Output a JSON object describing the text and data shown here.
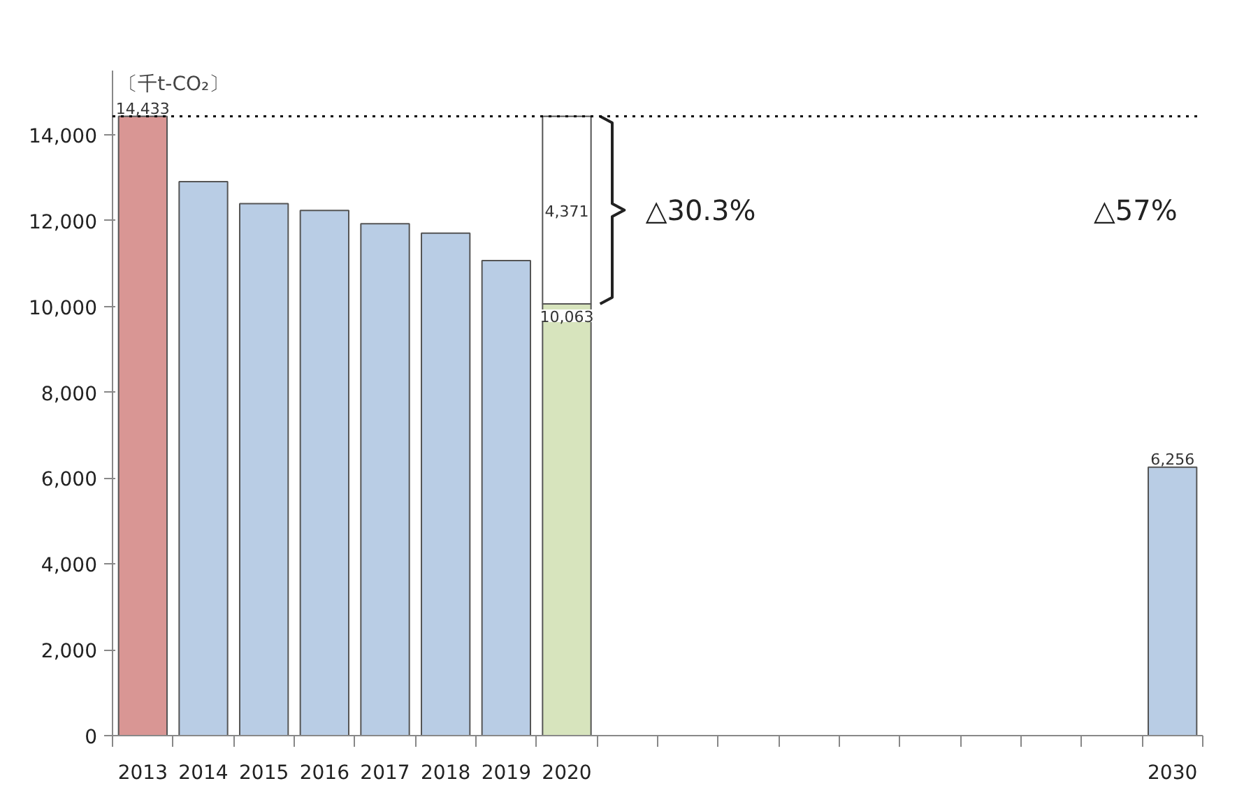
{
  "chart_data": {
    "type": "bar",
    "stacked": true,
    "ylabel": "〔千t-CO₂〕",
    "categories": [
      "2013",
      "2014",
      "2015",
      "2016",
      "2017",
      "2018",
      "2019",
      "2020",
      null,
      null,
      null,
      null,
      null,
      null,
      null,
      null,
      null,
      "2030"
    ],
    "series": [
      {
        "colors": [
          "#d99694",
          "#b9cde5",
          "#b9cde5",
          "#b9cde5",
          "#b9cde5",
          "#b9cde5",
          "#b9cde5",
          "#d7e4bd",
          null,
          null,
          null,
          null,
          null,
          null,
          null,
          null,
          null,
          "#b9cde5"
        ],
        "values": [
          14433,
          12910,
          12400,
          12240,
          11930,
          11710,
          11070,
          10063,
          null,
          null,
          null,
          null,
          null,
          null,
          null,
          null,
          null,
          6256
        ],
        "value_labels": [
          "14,433",
          null,
          null,
          null,
          null,
          null,
          null,
          "10,063",
          null,
          null,
          null,
          null,
          null,
          null,
          null,
          null,
          null,
          "6,256"
        ]
      },
      {
        "color": "#ffffff",
        "values": [
          null,
          null,
          null,
          null,
          null,
          null,
          null,
          4371,
          null,
          null,
          null,
          null,
          null,
          null,
          null,
          null,
          null,
          null
        ],
        "value_labels": [
          null,
          null,
          null,
          null,
          null,
          null,
          null,
          "4,371",
          null,
          null,
          null,
          null,
          null,
          null,
          null,
          null,
          null,
          null
        ]
      }
    ],
    "ylim": [
      0,
      15500
    ],
    "yticks": [
      {
        "value": 0,
        "label": "0"
      },
      {
        "value": 2000,
        "label": "2,000"
      },
      {
        "value": 4000,
        "label": "4,000"
      },
      {
        "value": 6000,
        "label": "6,000"
      },
      {
        "value": 8000,
        "label": "8,000"
      },
      {
        "value": 10000,
        "label": "10,000"
      },
      {
        "value": 12000,
        "label": "12,000"
      },
      {
        "value": 14000,
        "label": "14,000"
      }
    ],
    "ref_lines": [
      {
        "axis": "y",
        "value": 14433,
        "line_style": "dotted",
        "color": "#000000"
      }
    ],
    "annotations": [
      "△30.3%",
      "△57%"
    ],
    "grid": false
  }
}
